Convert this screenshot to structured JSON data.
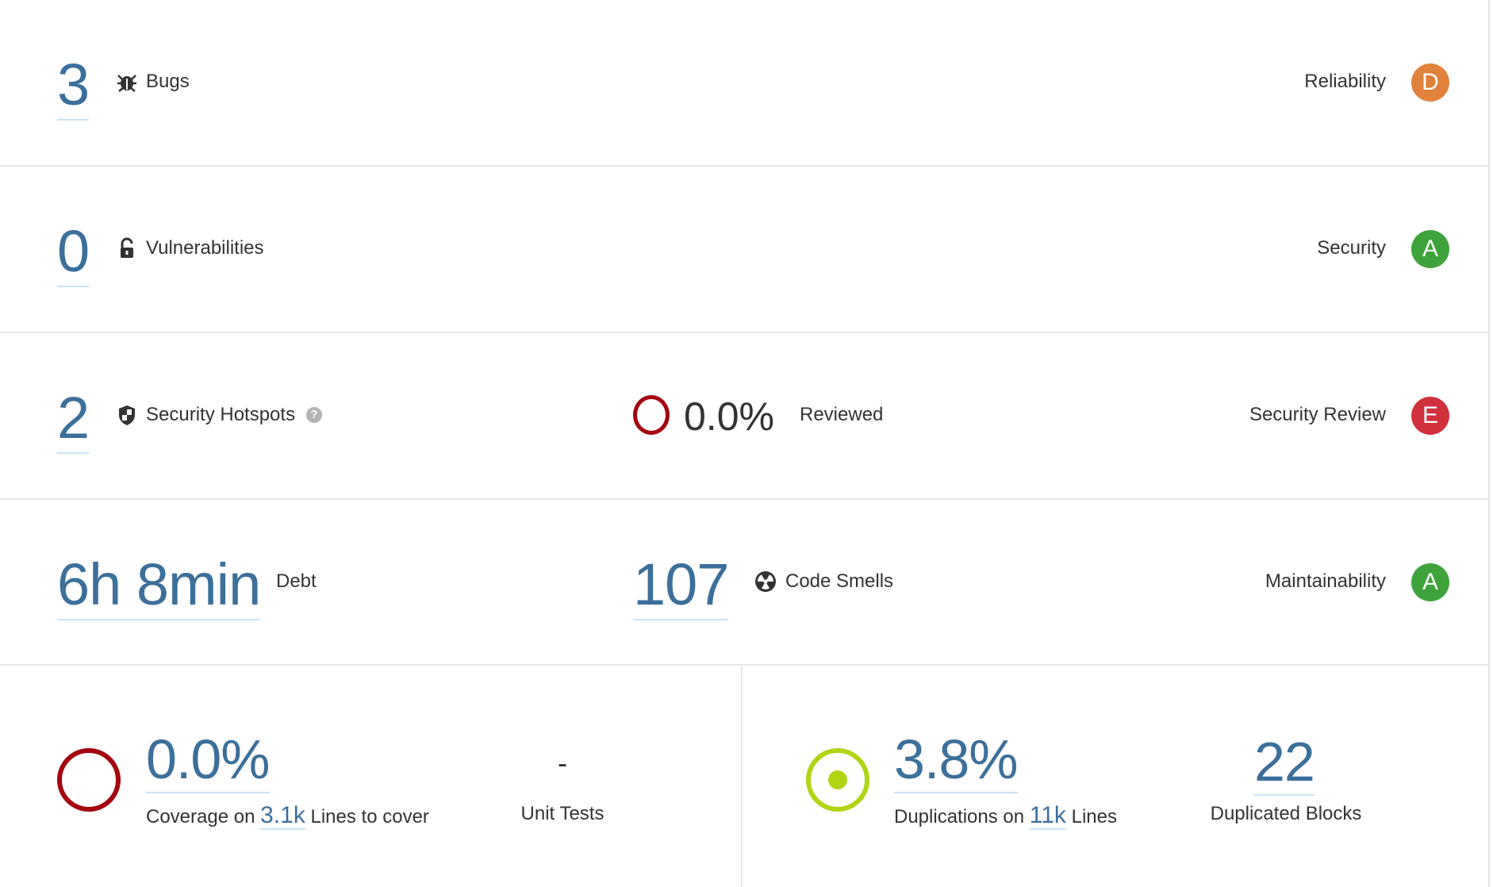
{
  "reliability": {
    "value": "3",
    "label": "Bugs",
    "icon": "bug-icon",
    "rating_label": "Reliability",
    "rating": "D",
    "rating_color": "#e0823c"
  },
  "security": {
    "value": "0",
    "label": "Vulnerabilities",
    "icon": "lock-icon",
    "rating_label": "Security",
    "rating": "A",
    "rating_color": "#3ea33a"
  },
  "hotspots": {
    "value": "2",
    "label": "Security Hotspots",
    "icon": "shield-icon",
    "help_icon": "question-icon",
    "reviewed_percent": "0.0%",
    "reviewed_label": "Reviewed",
    "rating_label": "Security Review",
    "rating": "E",
    "rating_color": "#d0313d",
    "ring_color": "#a4030f"
  },
  "maintainability": {
    "debt_value": "6h 8min",
    "debt_label": "Debt",
    "smells_value": "107",
    "smells_label": "Code Smells",
    "icon": "radiation-icon",
    "rating_label": "Maintainability",
    "rating": "A",
    "rating_color": "#3ea33a"
  },
  "coverage": {
    "value": "0.0%",
    "label_prefix": "Coverage on",
    "lines": "3.1k",
    "label_suffix": "Lines to cover",
    "unit_tests_value": "-",
    "unit_tests_label": "Unit Tests",
    "ring_color": "#a4030f"
  },
  "duplications": {
    "value": "3.8%",
    "label_prefix": "Duplications on",
    "lines": "11k",
    "label_suffix": "Lines",
    "blocks_value": "22",
    "blocks_label": "Duplicated Blocks",
    "ring_color": "#b0d513"
  }
}
